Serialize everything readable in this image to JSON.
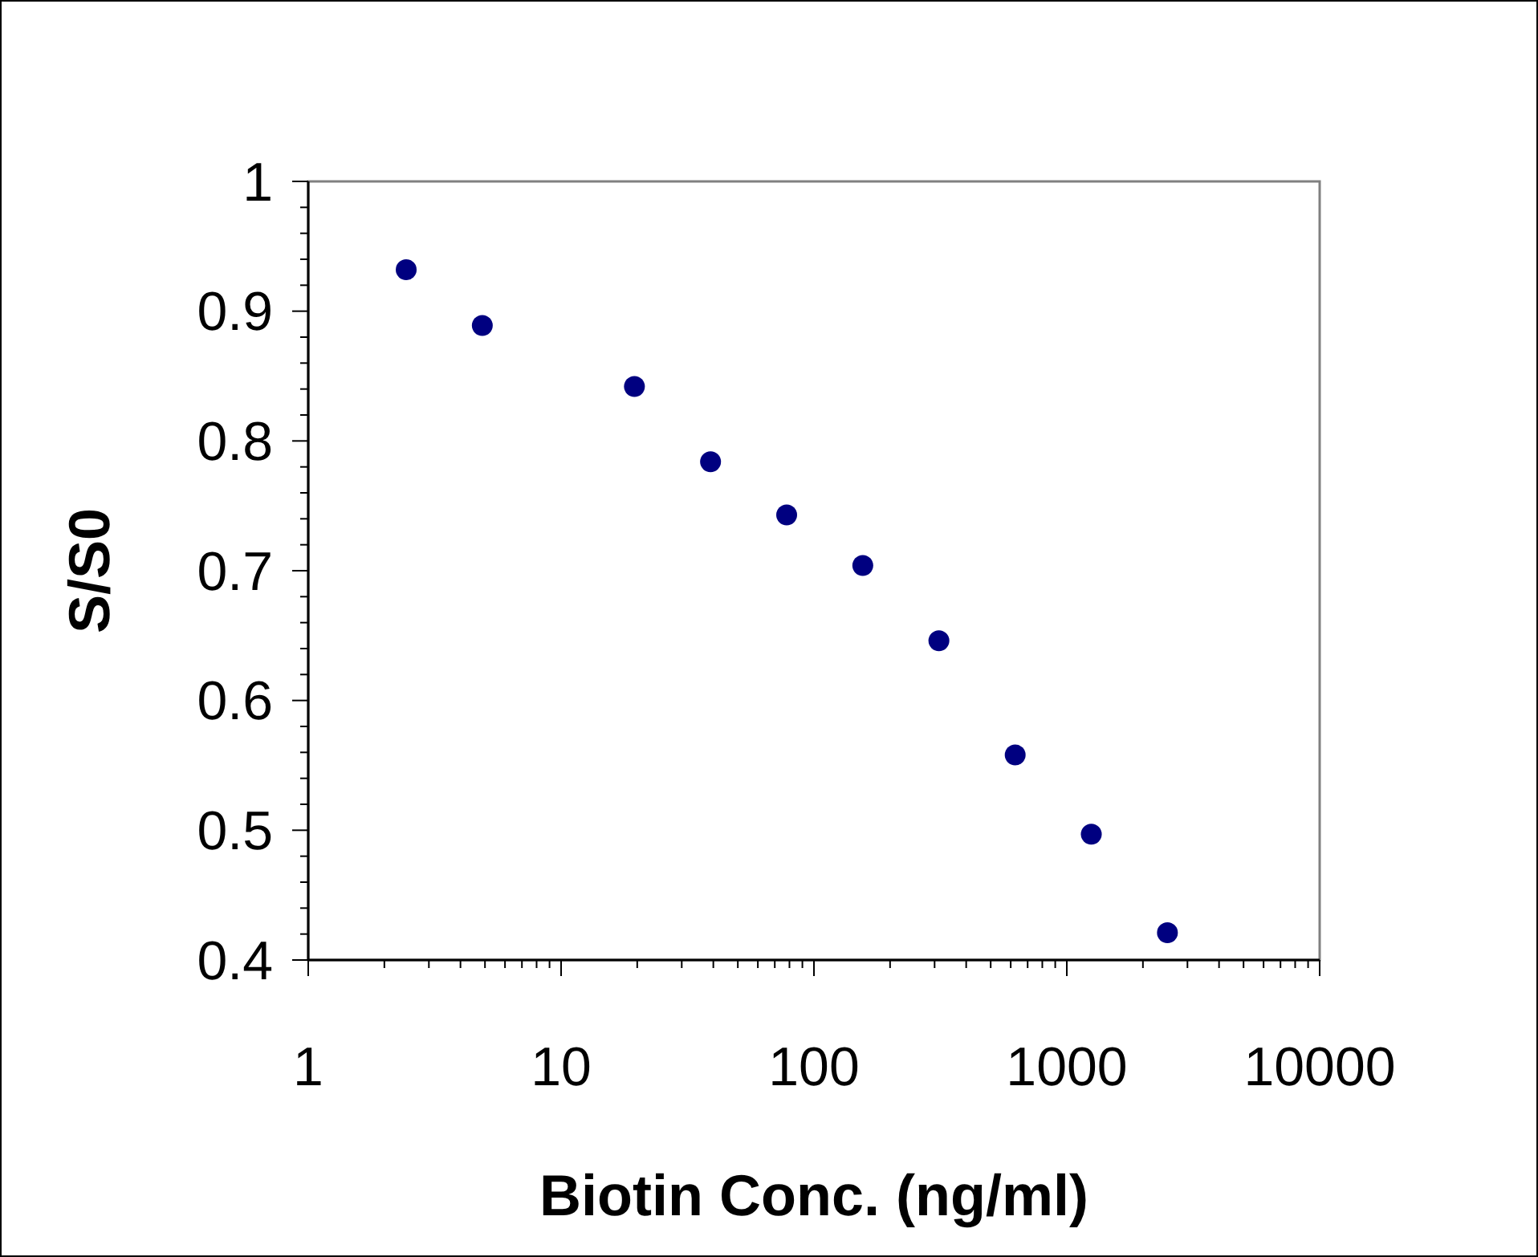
{
  "chart_data": {
    "type": "scatter",
    "xlabel": "Biotin Conc. (ng/ml)",
    "ylabel": "S/S0",
    "log": "x",
    "x": [
      2.44,
      4.88,
      19.5,
      39,
      78,
      156,
      312,
      625,
      1250,
      2500
    ],
    "series": [
      {
        "color": "#000080",
        "values": [
          0.932,
          0.889,
          0.842,
          0.784,
          0.743,
          0.704,
          0.646,
          0.558,
          0.497,
          0.421
        ]
      }
    ],
    "xlim": [
      1,
      10000
    ],
    "xticks": [
      1,
      10,
      100,
      1000,
      10000
    ],
    "ylim": [
      0.4,
      1
    ],
    "yticks": [
      0.4,
      0.5,
      0.6,
      0.7,
      0.8,
      0.9,
      1
    ],
    "grid": false,
    "marker": "circle"
  }
}
